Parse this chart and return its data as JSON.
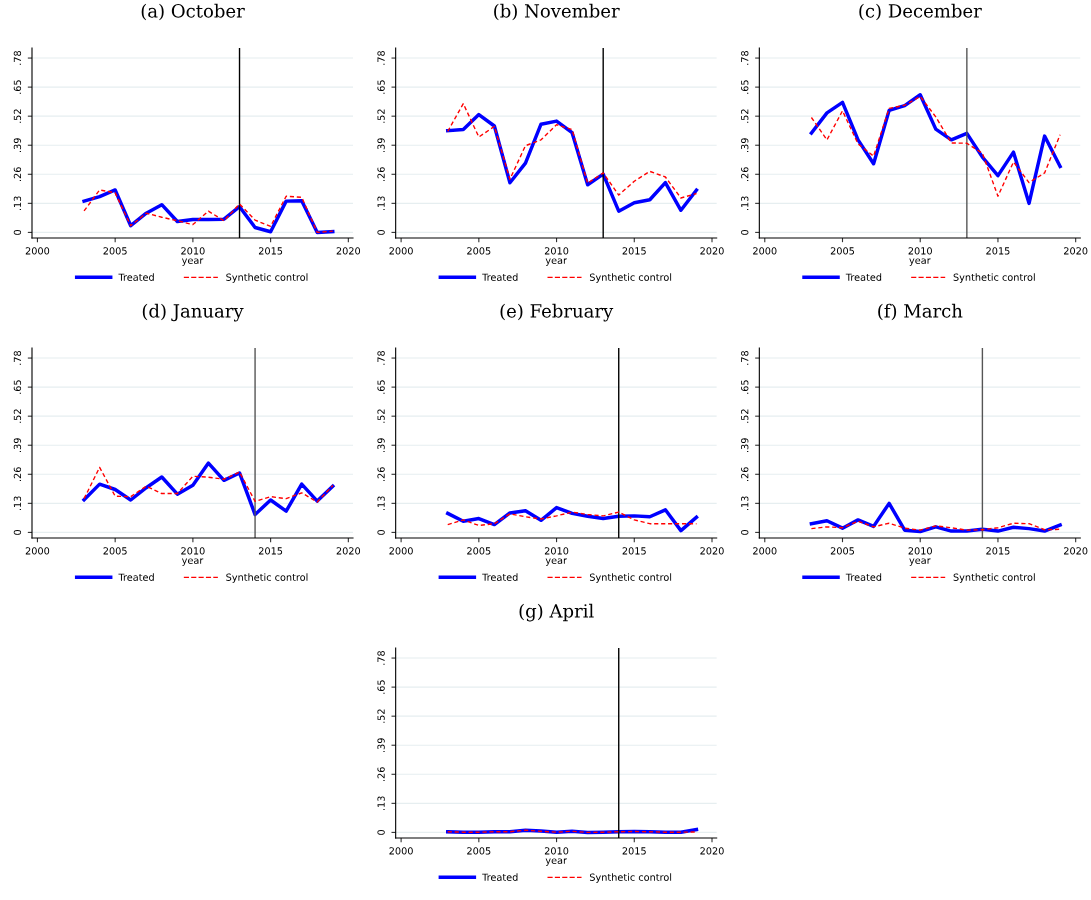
{
  "chart_data": [
    {
      "type": "line",
      "title": "(a) October",
      "xlabel": "year",
      "x": [
        2003,
        2004,
        2005,
        2006,
        2007,
        2008,
        2009,
        2010,
        2011,
        2012,
        2013,
        2014,
        2015,
        2016,
        2017,
        2018,
        2019
      ],
      "xlim": [
        1999.65,
        2020.3
      ],
      "xticks": [
        2000,
        2005,
        2010,
        2015,
        2020
      ],
      "ylim": [
        -0.025,
        0.825
      ],
      "yticks": [
        {
          "value": 0,
          "label": "0"
        },
        {
          "value": 0.13,
          "label": ".13"
        },
        {
          "value": 0.26,
          "label": ".26"
        },
        {
          "value": 0.39,
          "label": ".39"
        },
        {
          "value": 0.52,
          "label": ".52"
        },
        {
          "value": 0.65,
          "label": ".65"
        },
        {
          "value": 0.78,
          "label": ".78"
        }
      ],
      "grid": "y",
      "legend": "bottom",
      "ref_lines": [
        {
          "axis": "x",
          "value": 2013,
          "color": "#000000"
        }
      ],
      "series": [
        {
          "name": "Treated",
          "color": "#0000ff",
          "line_style": "solid",
          "values": [
            0.14,
            0.16,
            0.19,
            0.03,
            0.086,
            0.124,
            0.049,
            0.058,
            0.058,
            0.059,
            0.115,
            0.022,
            0.003,
            0.14,
            0.142,
            0,
            0.004
          ]
        },
        {
          "name": "Synthetic control",
          "color": "#ff0000",
          "line_style": "dashed",
          "values": [
            0.096,
            0.19,
            0.177,
            0.03,
            0.086,
            0.068,
            0.052,
            0.035,
            0.095,
            0.052,
            0.127,
            0.055,
            0.027,
            0.162,
            0.157,
            0,
            0.006
          ]
        }
      ]
    },
    {
      "type": "line",
      "title": "(b) November",
      "xlabel": "year",
      "x": [
        2003,
        2004,
        2005,
        2006,
        2007,
        2008,
        2009,
        2010,
        2011,
        2012,
        2013,
        2014,
        2015,
        2016,
        2017,
        2018,
        2019
      ],
      "xlim": [
        1999.65,
        2020.3
      ],
      "xticks": [
        2000,
        2005,
        2010,
        2015,
        2020
      ],
      "ylim": [
        -0.025,
        0.825
      ],
      "yticks": [
        {
          "value": 0,
          "label": "0"
        },
        {
          "value": 0.13,
          "label": ".13"
        },
        {
          "value": 0.26,
          "label": ".26"
        },
        {
          "value": 0.39,
          "label": ".39"
        },
        {
          "value": 0.52,
          "label": ".52"
        },
        {
          "value": 0.65,
          "label": ".65"
        },
        {
          "value": 0.78,
          "label": ".78"
        }
      ],
      "grid": "y",
      "legend": "bottom",
      "ref_lines": [
        {
          "axis": "x",
          "value": 2013,
          "color": "#000000"
        }
      ],
      "series": [
        {
          "name": "Treated",
          "color": "#0000ff",
          "line_style": "solid",
          "values": [
            0.455,
            0.46,
            0.527,
            0.476,
            0.222,
            0.31,
            0.484,
            0.498,
            0.446,
            0.213,
            0.261,
            0.095,
            0.133,
            0.146,
            0.223,
            0.099,
            0.189
          ]
        },
        {
          "name": "Synthetic control",
          "color": "#ff0000",
          "line_style": "dashed",
          "values": [
            0.452,
            0.576,
            0.427,
            0.474,
            0.238,
            0.388,
            0.414,
            0.482,
            0.46,
            0.22,
            0.266,
            0.167,
            0.229,
            0.273,
            0.248,
            0.154,
            0.174
          ]
        }
      ]
    },
    {
      "type": "line",
      "title": "(c) December",
      "xlabel": "year",
      "x": [
        2003,
        2004,
        2005,
        2006,
        2007,
        2008,
        2009,
        2010,
        2011,
        2012,
        2013,
        2014,
        2015,
        2016,
        2017,
        2018,
        2019
      ],
      "xlim": [
        1999.65,
        2020.3
      ],
      "xticks": [
        2000,
        2005,
        2010,
        2015,
        2020
      ],
      "ylim": [
        -0.025,
        0.825
      ],
      "yticks": [
        {
          "value": 0,
          "label": "0"
        },
        {
          "value": 0.13,
          "label": ".13"
        },
        {
          "value": 0.26,
          "label": ".26"
        },
        {
          "value": 0.39,
          "label": ".39"
        },
        {
          "value": 0.52,
          "label": ".52"
        },
        {
          "value": 0.65,
          "label": ".65"
        },
        {
          "value": 0.78,
          "label": ".78"
        }
      ],
      "grid": "y",
      "legend": "bottom",
      "ref_lines": [
        {
          "axis": "x",
          "value": 2013,
          "color": "#555555"
        }
      ],
      "series": [
        {
          "name": "Treated",
          "color": "#0000ff",
          "line_style": "solid",
          "values": [
            0.445,
            0.535,
            0.582,
            0.414,
            0.307,
            0.546,
            0.567,
            0.616,
            0.462,
            0.414,
            0.443,
            0.337,
            0.254,
            0.359,
            0.13,
            0.431,
            0.295
          ]
        },
        {
          "name": "Synthetic control",
          "color": "#ff0000",
          "line_style": "dashed",
          "values": [
            0.514,
            0.414,
            0.544,
            0.396,
            0.341,
            0.555,
            0.569,
            0.608,
            0.517,
            0.4,
            0.399,
            0.354,
            0.162,
            0.315,
            0.223,
            0.266,
            0.437
          ]
        }
      ]
    },
    {
      "type": "line",
      "title": "(d) January",
      "xlabel": "year",
      "x": [
        2003,
        2004,
        2005,
        2006,
        2007,
        2008,
        2009,
        2010,
        2011,
        2012,
        2013,
        2014,
        2015,
        2016,
        2017,
        2018,
        2019
      ],
      "xlim": [
        1999.65,
        2020.3
      ],
      "xticks": [
        2000,
        2005,
        2010,
        2015,
        2020
      ],
      "ylim": [
        -0.025,
        0.825
      ],
      "yticks": [
        {
          "value": 0,
          "label": "0"
        },
        {
          "value": 0.13,
          "label": ".13"
        },
        {
          "value": 0.26,
          "label": ".26"
        },
        {
          "value": 0.39,
          "label": ".39"
        },
        {
          "value": 0.52,
          "label": ".52"
        },
        {
          "value": 0.65,
          "label": ".65"
        },
        {
          "value": 0.78,
          "label": ".78"
        }
      ],
      "grid": "y",
      "legend": "bottom",
      "ref_lines": [
        {
          "axis": "x",
          "value": 2014,
          "color": "#555555"
        }
      ],
      "series": [
        {
          "name": "Treated",
          "color": "#0000ff",
          "line_style": "solid",
          "values": [
            0.146,
            0.216,
            0.192,
            0.145,
            0.2,
            0.248,
            0.171,
            0.211,
            0.31,
            0.233,
            0.266,
            0.08,
            0.145,
            0.095,
            0.216,
            0.14,
            0.207
          ]
        },
        {
          "name": "Synthetic control",
          "color": "#ff0000",
          "line_style": "dashed",
          "values": [
            0.151,
            0.291,
            0.162,
            0.16,
            0.207,
            0.174,
            0.174,
            0.251,
            0.247,
            0.238,
            0.27,
            0.139,
            0.16,
            0.151,
            0.177,
            0.136,
            0.21
          ]
        }
      ]
    },
    {
      "type": "line",
      "title": "(e) February",
      "xlabel": "year",
      "x": [
        2003,
        2004,
        2005,
        2006,
        2007,
        2008,
        2009,
        2010,
        2011,
        2012,
        2013,
        2014,
        2015,
        2016,
        2017,
        2018,
        2019
      ],
      "xlim": [
        1999.65,
        2020.3
      ],
      "xticks": [
        2000,
        2005,
        2010,
        2015,
        2020
      ],
      "ylim": [
        -0.025,
        0.825
      ],
      "yticks": [
        {
          "value": 0,
          "label": "0"
        },
        {
          "value": 0.13,
          "label": ".13"
        },
        {
          "value": 0.26,
          "label": ".26"
        },
        {
          "value": 0.39,
          "label": ".39"
        },
        {
          "value": 0.52,
          "label": ".52"
        },
        {
          "value": 0.65,
          "label": ".65"
        },
        {
          "value": 0.78,
          "label": ".78"
        }
      ],
      "grid": "y",
      "legend": "bottom",
      "ref_lines": [
        {
          "axis": "x",
          "value": 2014,
          "color": "#000000"
        }
      ],
      "series": [
        {
          "name": "Treated",
          "color": "#0000ff",
          "line_style": "solid",
          "values": [
            0.085,
            0.05,
            0.062,
            0.035,
            0.087,
            0.097,
            0.054,
            0.111,
            0.085,
            0.072,
            0.062,
            0.072,
            0.074,
            0.07,
            0.101,
            0.008,
            0.068
          ]
        },
        {
          "name": "Synthetic control",
          "color": "#ff0000",
          "line_style": "dashed",
          "values": [
            0.035,
            0.056,
            0.031,
            0.039,
            0.083,
            0.07,
            0.06,
            0.074,
            0.091,
            0.08,
            0.074,
            0.091,
            0.056,
            0.039,
            0.039,
            0.039,
            0.039
          ]
        }
      ]
    },
    {
      "type": "line",
      "title": "(f) March",
      "xlabel": "year",
      "x": [
        2003,
        2004,
        2005,
        2006,
        2007,
        2008,
        2009,
        2010,
        2011,
        2012,
        2013,
        2014,
        2015,
        2016,
        2017,
        2018,
        2019
      ],
      "xlim": [
        1999.65,
        2020.3
      ],
      "xticks": [
        2000,
        2005,
        2010,
        2015,
        2020
      ],
      "ylim": [
        -0.025,
        0.825
      ],
      "yticks": [
        {
          "value": 0,
          "label": "0"
        },
        {
          "value": 0.13,
          "label": ".13"
        },
        {
          "value": 0.26,
          "label": ".26"
        },
        {
          "value": 0.39,
          "label": ".39"
        },
        {
          "value": 0.52,
          "label": ".52"
        },
        {
          "value": 0.65,
          "label": ".65"
        },
        {
          "value": 0.78,
          "label": ".78"
        }
      ],
      "grid": "y",
      "legend": "bottom",
      "ref_lines": [
        {
          "axis": "x",
          "value": 2014,
          "color": "#555555"
        }
      ],
      "series": [
        {
          "name": "Treated",
          "color": "#0000ff",
          "line_style": "solid",
          "values": [
            0.039,
            0.052,
            0.019,
            0.056,
            0.027,
            0.13,
            0.01,
            0.004,
            0.025,
            0.006,
            0.006,
            0.014,
            0.006,
            0.023,
            0.017,
            0.006,
            0.033
          ]
        },
        {
          "name": "Synthetic control",
          "color": "#ff0000",
          "line_style": "dashed",
          "values": [
            0.017,
            0.025,
            0.021,
            0.05,
            0.025,
            0.041,
            0.019,
            0.01,
            0.029,
            0.021,
            0.01,
            0.012,
            0.021,
            0.041,
            0.039,
            0.012,
            0.014
          ]
        }
      ]
    },
    {
      "type": "line",
      "title": "(g) April",
      "xlabel": "year",
      "x": [
        2003,
        2004,
        2005,
        2006,
        2007,
        2008,
        2009,
        2010,
        2011,
        2012,
        2013,
        2014,
        2015,
        2016,
        2017,
        2018,
        2019
      ],
      "xlim": [
        1999.65,
        2020.3
      ],
      "xticks": [
        2000,
        2005,
        2010,
        2015,
        2020
      ],
      "ylim": [
        -0.025,
        0.825
      ],
      "yticks": [
        {
          "value": 0,
          "label": "0"
        },
        {
          "value": 0.13,
          "label": ".13"
        },
        {
          "value": 0.26,
          "label": ".26"
        },
        {
          "value": 0.39,
          "label": ".39"
        },
        {
          "value": 0.52,
          "label": ".52"
        },
        {
          "value": 0.65,
          "label": ".65"
        },
        {
          "value": 0.78,
          "label": ".78"
        }
      ],
      "grid": "y",
      "legend": "bottom",
      "ref_lines": [
        {
          "axis": "x",
          "value": 2014,
          "color": "#000000"
        }
      ],
      "series": [
        {
          "name": "Treated",
          "color": "#0000ff",
          "line_style": "solid",
          "values": [
            0.003,
            0.001,
            0.001,
            0.003,
            0.003,
            0.01,
            0.006,
            0.001,
            0.005,
            0,
            0.001,
            0.003,
            0.004,
            0.003,
            0.001,
            0.001,
            0.013
          ]
        },
        {
          "name": "Synthetic control",
          "color": "#ff0000",
          "line_style": "dashed",
          "values": [
            0.003,
            0.001,
            0.001,
            0.003,
            0.003,
            0.01,
            0.005,
            0.001,
            0.005,
            0,
            0.001,
            0.003,
            0.004,
            0.003,
            0.001,
            0.001,
            0.002
          ]
        }
      ]
    }
  ]
}
